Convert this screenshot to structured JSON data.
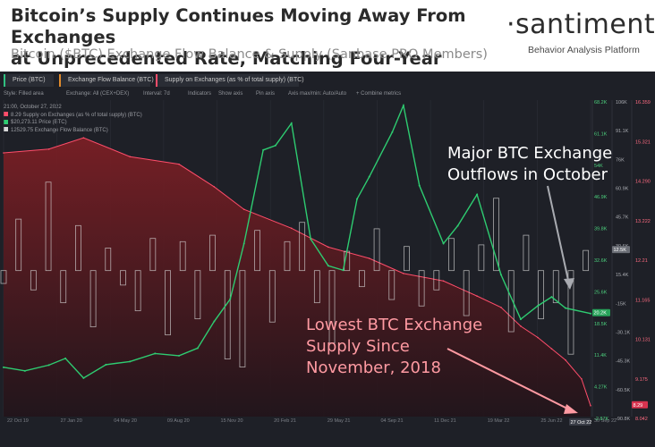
{
  "header": {
    "title_line1": "Bitcoin’s Supply Continues Moving Away From Exchanges",
    "title_line2": "at Unprecedented Rate, Matching Four-Year Lows",
    "subtitle": "Bitcoin ($BTC) Exchange Flow Balance & Supply (Sanbase PRO Members)"
  },
  "brand": {
    "logo_text": "·santiment·",
    "tagline": "Behavior Analysis Platform"
  },
  "tabs": [
    {
      "label": "Price (BTC)",
      "color": "#2ecc71"
    },
    {
      "label": "Exchange Flow Balance (BTC)",
      "color": "#d8d8d8"
    },
    {
      "label": "Supply on Exchanges (as % of total supply) (BTC)",
      "color": "#ff4d6a"
    }
  ],
  "toolbar": {
    "style": "Style: Filled area",
    "exchange": "Exchange: All (CEX+DEX)",
    "interval": "Interval: 7d",
    "indicators": "Indicators",
    "show_axis": "Show axis",
    "pin_axis": "Pin axis",
    "axis_max": "Axis max/min: Auto/Auto",
    "combine": "+ Combine metrics"
  },
  "legend": {
    "date": "21:00, October 27, 2022",
    "supply": "8.29 Supply on Exchanges (as % of total supply) (BTC)",
    "price": "$20,273.11 Price (BTC)",
    "flow": "12529.75 Exchange Flow Balance (BTC)"
  },
  "colors": {
    "background": "#1e2027",
    "price": "#2ecc71",
    "flow": "#d8d8d8",
    "supply": "#ff4d6a",
    "supply_fill_top": "#7a1f25",
    "supply_fill_bottom": "#22141a"
  },
  "annotations": {
    "outflows_line1": "Major BTC Exchange",
    "outflows_line2": "Outflows in October",
    "supply_line1": "Lowest BTC Exchange",
    "supply_line2": "Supply Since",
    "supply_line3": "November, 2018"
  },
  "axis_labels": {
    "price_mid_badge": "20.2K",
    "flow_right_badge": "12.5K",
    "supply_right_badge": "8.29",
    "current_date_badge": "27 Oct 22"
  },
  "chart_data": {
    "type": "line",
    "title": "",
    "x_axis": {
      "ticks": [
        "22 Oct 19",
        "27 Jan 20",
        "04 May 20",
        "09 Aug 20",
        "15 Nov 20",
        "20 Feb 21",
        "29 May 21",
        "04 Sep 21",
        "11 Dec 21",
        "19 Mar 22",
        "25 Jun 22",
        "30 Sep 22"
      ],
      "range": [
        "2019-10-22",
        "2022-10-27"
      ]
    },
    "price_axis": {
      "ticks": [
        "68.2K",
        "61.1K",
        "54K",
        "46.9K",
        "39.8K",
        "32.6K",
        "25.6K",
        "18.5K",
        "11.4K",
        "4.27K",
        "-2.87K"
      ],
      "range": [
        -2870,
        68200
      ]
    },
    "flow_axis": {
      "ticks": [
        "106K",
        "91.1K",
        "76K",
        "60.9K",
        "45.7K",
        "30.6K",
        "15.4K",
        "-15K",
        "-30.1K",
        "-45.3K",
        "-60.5K",
        "-90.8K"
      ],
      "range": [
        -90800,
        106000
      ]
    },
    "supply_axis": {
      "ticks": [
        "16.359",
        "15.321",
        "14.290",
        "13.222",
        "12.21",
        "11.165",
        "10.131",
        "9.175",
        "8.042"
      ],
      "range": [
        8.0,
        16.4
      ]
    },
    "series": [
      {
        "name": "Price (BTC)",
        "axis": "price",
        "x": [
          "2019-10-22",
          "2019-12-01",
          "2020-01-15",
          "2020-02-15",
          "2020-03-20",
          "2020-05-01",
          "2020-06-15",
          "2020-08-01",
          "2020-09-15",
          "2020-10-20",
          "2020-11-20",
          "2020-12-20",
          "2021-01-15",
          "2021-02-20",
          "2021-03-15",
          "2021-04-14",
          "2021-05-20",
          "2021-06-22",
          "2021-07-20",
          "2021-08-15",
          "2021-09-07",
          "2021-10-20",
          "2021-11-10",
          "2021-12-10",
          "2022-01-24",
          "2022-02-20",
          "2022-03-28",
          "2022-05-12",
          "2022-06-18",
          "2022-07-20",
          "2022-08-15",
          "2022-09-10",
          "2022-10-27"
        ],
        "values": [
          8200,
          7400,
          8700,
          10200,
          5800,
          8800,
          9500,
          11300,
          10800,
          12500,
          18500,
          23500,
          36000,
          57000,
          58000,
          63000,
          37000,
          31000,
          30000,
          46000,
          51000,
          61000,
          67000,
          49000,
          36000,
          40000,
          47000,
          29000,
          19000,
          22000,
          24000,
          21500,
          20273
        ]
      },
      {
        "name": "Exchange Flow Balance (BTC)",
        "axis": "flow",
        "x": [
          "2019-10-22",
          "2019-11-19",
          "2019-12-17",
          "2020-01-14",
          "2020-02-11",
          "2020-03-10",
          "2020-04-07",
          "2020-05-05",
          "2020-06-02",
          "2020-06-30",
          "2020-07-28",
          "2020-08-25",
          "2020-09-22",
          "2020-10-20",
          "2020-11-17",
          "2020-12-15",
          "2021-01-12",
          "2021-02-09",
          "2021-03-09",
          "2021-04-06",
          "2021-05-04",
          "2021-06-01",
          "2021-06-29",
          "2021-07-27",
          "2021-08-24",
          "2021-09-21",
          "2021-10-19",
          "2021-11-16",
          "2021-12-14",
          "2022-01-11",
          "2022-02-08",
          "2022-03-08",
          "2022-04-05",
          "2022-05-03",
          "2022-05-31",
          "2022-06-28",
          "2022-07-26",
          "2022-08-23",
          "2022-09-20",
          "2022-10-18"
        ],
        "values": [
          -8000,
          32000,
          -12000,
          55000,
          -20000,
          28000,
          -35000,
          14000,
          -9000,
          -25000,
          20000,
          -40000,
          18000,
          -30000,
          22000,
          -55000,
          -60000,
          25000,
          -32000,
          18000,
          30000,
          -20000,
          -45000,
          12000,
          -10000,
          26000,
          -18000,
          15000,
          -22000,
          -12000,
          20000,
          -28000,
          16000,
          45000,
          -38000,
          22000,
          -30000,
          -20000,
          -52000,
          12530
        ]
      },
      {
        "name": "Supply on Exchanges (as % of total supply) (BTC)",
        "axis": "supply",
        "x": [
          "2019-10-22",
          "2020-01-15",
          "2020-03-20",
          "2020-06-15",
          "2020-09-15",
          "2020-11-20",
          "2021-01-15",
          "2021-04-14",
          "2021-06-22",
          "2021-09-07",
          "2021-11-10",
          "2022-01-24",
          "2022-03-28",
          "2022-05-12",
          "2022-06-18",
          "2022-07-20",
          "2022-08-15",
          "2022-09-10",
          "2022-10-10",
          "2022-10-27"
        ],
        "values": [
          15.0,
          15.1,
          15.4,
          14.9,
          14.7,
          14.1,
          13.5,
          13.0,
          12.5,
          12.2,
          11.8,
          11.6,
          11.2,
          10.9,
          10.4,
          10.1,
          9.8,
          9.5,
          9.0,
          8.29
        ]
      }
    ]
  }
}
